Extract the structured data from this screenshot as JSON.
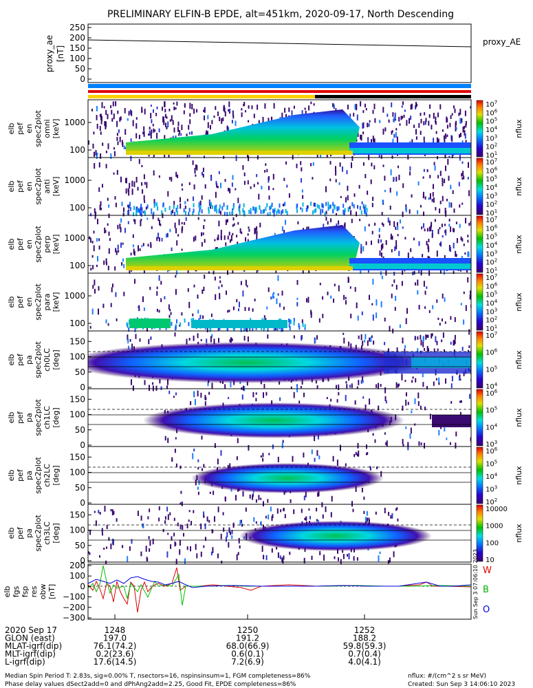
{
  "title": "PRELIMINARY ELFIN-B EPDE, alt=451km, 2020-09-17, North Descending",
  "colors": {
    "cyan_bar": "#0080ff",
    "yellow_bar": "#ffd000",
    "black_bar": "#000000",
    "red_bar": "#e00000",
    "W": "#e00000",
    "B": "#00b000",
    "O": "#0000e0"
  },
  "chart_data": [
    {
      "type": "line",
      "id": "proxy_ae",
      "ylabel": "proxy_ae\n[nT]",
      "ylim": [
        0,
        250
      ],
      "yticks": [
        "250",
        "200",
        "150",
        "100",
        "50",
        "0"
      ],
      "legend": "proxy_AE",
      "series": [
        {
          "values_start": 185,
          "values_end": 155
        }
      ]
    },
    {
      "type": "heatmap",
      "id": "pef-en-omni",
      "ylabel": [
        "elb",
        "pef",
        "en",
        "spec2plot",
        "omni",
        "[keV]"
      ],
      "yscale": "log",
      "yticks": [
        "1000",
        "100"
      ],
      "colorbar": {
        "label": "nflux",
        "ticks": [
          "10^7",
          "10^6",
          "10^5",
          "10^4",
          "10^3",
          "10^2",
          "10^1"
        ]
      }
    },
    {
      "type": "heatmap",
      "id": "pef-en-anti",
      "ylabel": [
        "elb",
        "pef",
        "en",
        "spec2plot",
        "anti",
        "[keV]"
      ],
      "yscale": "log",
      "yticks": [
        "1000",
        "100"
      ],
      "colorbar": {
        "label": "nflux",
        "ticks": [
          "10^7",
          "10^6",
          "10^5",
          "10^4",
          "10^3",
          "10^2",
          "10^1"
        ]
      }
    },
    {
      "type": "heatmap",
      "id": "pef-en-perp",
      "ylabel": [
        "elb",
        "pef",
        "en",
        "spec2plot",
        "perp",
        "[keV]"
      ],
      "yscale": "log",
      "yticks": [
        "1000",
        "100"
      ],
      "colorbar": {
        "label": "nflux",
        "ticks": [
          "10^7",
          "10^6",
          "10^5",
          "10^4",
          "10^3",
          "10^2",
          "10^1"
        ]
      }
    },
    {
      "type": "heatmap",
      "id": "pef-en-para",
      "ylabel": [
        "elb",
        "pef",
        "en",
        "spec2plot",
        "para",
        "[keV]"
      ],
      "yscale": "log",
      "yticks": [
        "1000",
        "100"
      ],
      "colorbar": {
        "label": "nflux",
        "ticks": [
          "10^7",
          "10^6",
          "10^5",
          "10^4",
          "10^3",
          "10^2",
          "10^1"
        ]
      }
    },
    {
      "type": "heatmap",
      "id": "pef-pa-ch0",
      "ylabel": [
        "elb",
        "pef",
        "pa",
        "spec2plot",
        "ch0LC",
        "[deg]"
      ],
      "ylim": [
        0,
        180
      ],
      "yticks": [
        "150",
        "100",
        "50",
        "0"
      ],
      "colorbar": {
        "label": "nflux",
        "ticks": [
          "10^7",
          "10^6",
          "10^5",
          "10^4"
        ]
      }
    },
    {
      "type": "heatmap",
      "id": "pef-pa-ch1",
      "ylabel": [
        "elb",
        "pef",
        "pa",
        "spec2plot",
        "ch1LC",
        "[deg]"
      ],
      "ylim": [
        0,
        180
      ],
      "yticks": [
        "150",
        "100",
        "50",
        "0"
      ],
      "colorbar": {
        "label": "nflux",
        "ticks": [
          "10^6",
          "10^5",
          "10^4",
          "10^3"
        ]
      }
    },
    {
      "type": "heatmap",
      "id": "pef-pa-ch2",
      "ylabel": [
        "elb",
        "pef",
        "pa",
        "spec2plot",
        "ch2LC",
        "[deg]"
      ],
      "ylim": [
        0,
        180
      ],
      "yticks": [
        "150",
        "100",
        "50",
        "0"
      ],
      "colorbar": {
        "label": "nflux",
        "ticks": [
          "10^6",
          "10^5",
          "10^4",
          "10^3",
          "10^2"
        ]
      }
    },
    {
      "type": "heatmap",
      "id": "pef-pa-ch3",
      "ylabel": [
        "elb",
        "pef",
        "pa",
        "spec2plot",
        "ch3LC",
        "[deg]"
      ],
      "ylim": [
        0,
        180
      ],
      "yticks": [
        "150",
        "100",
        "50",
        "0"
      ],
      "colorbar": {
        "label": "nflux",
        "ticks": [
          "10000",
          "1000",
          "100",
          "10"
        ]
      }
    },
    {
      "type": "line",
      "id": "fgs",
      "ylabel": [
        "elb",
        "fgs",
        "fsp",
        "res",
        "obw",
        "[nT]"
      ],
      "ylim": [
        -300,
        200
      ],
      "yticks": [
        "200",
        "100",
        "0",
        "−100",
        "−200",
        "−300"
      ],
      "legend": [
        "W",
        "B",
        "O"
      ],
      "side_text": "Sun Sep 3 07:06:10 2023"
    }
  ],
  "time_axis": {
    "ticks": [
      "1248",
      "1250",
      "1252"
    ],
    "rows": [
      {
        "label": "2020 Sep 17",
        "values": [
          "1248",
          "1250",
          "1252"
        ]
      },
      {
        "label": "GLON (east)",
        "values": [
          "197.0",
          "191.2",
          "188.2"
        ]
      },
      {
        "label": "MLAT-igrf(dip)",
        "values": [
          "76.1(74.2)",
          "68.0(66.9)",
          "59.8(59.3)"
        ]
      },
      {
        "label": "MLT-igrf(dip)",
        "values": [
          "0.2(23.6)",
          "0.6(0.1)",
          "0.7(0.4)"
        ]
      },
      {
        "label": "L-igrf(dip)",
        "values": [
          "17.6(14.5)",
          "7.2(6.9)",
          "4.0(4.1)"
        ]
      }
    ]
  },
  "footer": {
    "line1": "Median Spin Period T: 2.83s, sig=0.00% T, nsectors=16, nspinsinsum=1, FGM completeness=86%",
    "line2": "Phase delay values dSect2add=0 and dPhAng2add=2.25, Good Fit, EPDE completeness=86%",
    "right1": "nflux: #/(cm^2 s sr MeV)",
    "right2": "Created: Sun Sep  3 14:06:10 2023"
  }
}
